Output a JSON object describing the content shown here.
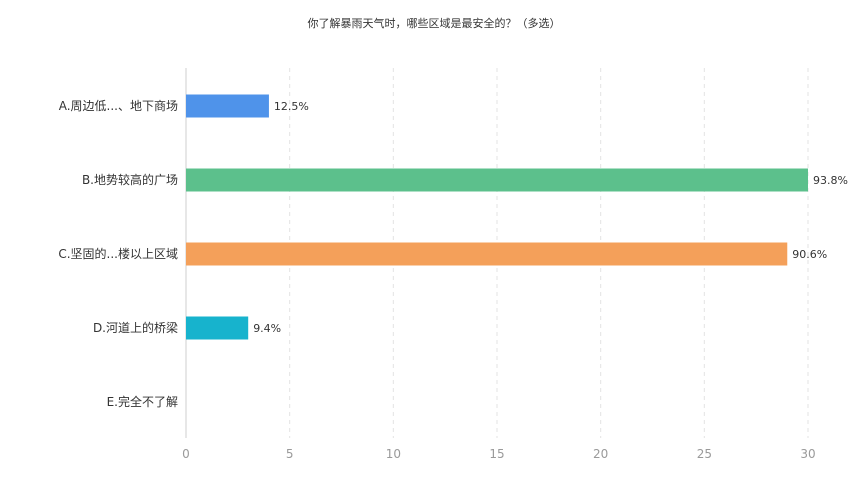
{
  "chart_data": {
    "type": "bar",
    "orientation": "horizontal",
    "title": "你了解暴雨天气时，哪些区域是最安全的？（多选）",
    "categories": [
      "A.周边低...、地下商场",
      "B.地势较高的广场",
      "C.坚固的...楼以上区域",
      "D.河道上的桥梁",
      "E.完全不了解"
    ],
    "values": [
      4,
      30,
      29,
      3,
      0
    ],
    "data_labels": [
      "12.5%",
      "93.8%",
      "90.6%",
      "9.4%",
      ""
    ],
    "colors": [
      "#4f93ea",
      "#5cc08c",
      "#f4a05a",
      "#17b3cd",
      "#cccccc"
    ],
    "xlim": [
      0,
      30
    ],
    "xticks": [
      "0",
      "5",
      "10",
      "15",
      "20",
      "25",
      "30"
    ],
    "grid": true,
    "legend": "none"
  }
}
